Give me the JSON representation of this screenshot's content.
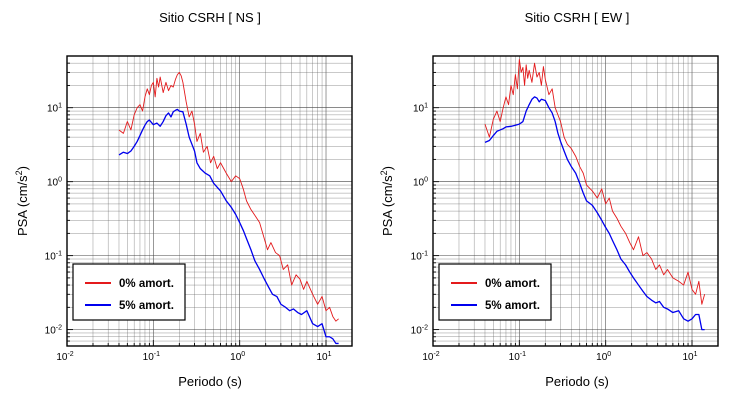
{
  "chart_data": [
    {
      "type": "line",
      "title": "Sitio CSRH [ NS ]",
      "xlabel": "Periodo (s)",
      "ylabel_main": "PSA (cm/s",
      "ylabel_sup": "2",
      "ylabel_end": ")",
      "xscale": "log",
      "yscale": "log",
      "xlim": [
        0.01,
        20
      ],
      "ylim": [
        0.006,
        50
      ],
      "grid": true,
      "legend_position": "bottom-left",
      "xticks": [
        {
          "value": 0.01,
          "base": "10",
          "exp": "-2"
        },
        {
          "value": 0.1,
          "base": "10",
          "exp": "-1"
        },
        {
          "value": 1,
          "base": "10",
          "exp": "0"
        },
        {
          "value": 10,
          "base": "10",
          "exp": "1"
        }
      ],
      "yticks": [
        {
          "value": 0.01,
          "base": "10",
          "exp": "-2"
        },
        {
          "value": 0.1,
          "base": "10",
          "exp": "-1"
        },
        {
          "value": 1,
          "base": "10",
          "exp": "0"
        },
        {
          "value": 10,
          "base": "10",
          "exp": "1"
        }
      ],
      "series": [
        {
          "name": "0% amort.",
          "color": "#e41a1c",
          "x": [
            0.04,
            0.045,
            0.05,
            0.055,
            0.06,
            0.065,
            0.07,
            0.075,
            0.08,
            0.085,
            0.09,
            0.095,
            0.1,
            0.105,
            0.11,
            0.115,
            0.12,
            0.13,
            0.14,
            0.15,
            0.16,
            0.17,
            0.18,
            0.19,
            0.2,
            0.21,
            0.22,
            0.24,
            0.26,
            0.28,
            0.3,
            0.32,
            0.35,
            0.38,
            0.42,
            0.46,
            0.5,
            0.55,
            0.6,
            0.7,
            0.8,
            0.9,
            1.0,
            1.1,
            1.2,
            1.35,
            1.5,
            1.7,
            1.9,
            2.1,
            2.3,
            2.6,
            2.9,
            3.2,
            3.6,
            4.0,
            4.5,
            5.0,
            5.5,
            6.0,
            7.0,
            8.0,
            9.0,
            10.0,
            11.0,
            12.0,
            13.0,
            14.0
          ],
          "values": [
            5.0,
            4.5,
            6.5,
            5.0,
            8.0,
            10.0,
            11.0,
            9.0,
            14.0,
            18.0,
            15.0,
            20.0,
            22.0,
            14.0,
            25.0,
            19.0,
            26.0,
            16.0,
            22.0,
            17.0,
            20.0,
            19.0,
            24.0,
            28.0,
            30.0,
            27.0,
            22.0,
            12.0,
            7.5,
            9.0,
            6.0,
            3.5,
            4.5,
            2.5,
            3.0,
            1.8,
            2.2,
            1.5,
            1.8,
            1.3,
            1.0,
            1.2,
            1.1,
            0.8,
            0.55,
            0.42,
            0.35,
            0.28,
            0.18,
            0.12,
            0.15,
            0.11,
            0.1,
            0.065,
            0.075,
            0.04,
            0.055,
            0.048,
            0.035,
            0.045,
            0.03,
            0.022,
            0.028,
            0.018,
            0.02,
            0.015,
            0.013,
            0.014
          ]
        },
        {
          "name": "5% amort.",
          "color": "#0000ee",
          "x": [
            0.04,
            0.045,
            0.05,
            0.055,
            0.06,
            0.065,
            0.07,
            0.075,
            0.08,
            0.085,
            0.09,
            0.1,
            0.11,
            0.12,
            0.13,
            0.14,
            0.15,
            0.16,
            0.17,
            0.18,
            0.19,
            0.2,
            0.22,
            0.24,
            0.26,
            0.28,
            0.3,
            0.32,
            0.35,
            0.4,
            0.45,
            0.5,
            0.6,
            0.7,
            0.8,
            0.9,
            1.0,
            1.1,
            1.2,
            1.35,
            1.5,
            1.7,
            1.9,
            2.1,
            2.4,
            2.7,
            3.0,
            3.4,
            3.8,
            4.2,
            4.7,
            5.2,
            6.0,
            7.0,
            8.0,
            9.0,
            10.0,
            11.0,
            12.0,
            13.0,
            14.0
          ],
          "values": [
            2.3,
            2.5,
            2.4,
            2.6,
            3.0,
            3.5,
            4.2,
            5.0,
            5.8,
            6.5,
            6.8,
            5.9,
            6.2,
            5.6,
            6.5,
            7.8,
            8.5,
            7.5,
            8.8,
            9.2,
            9.5,
            9.0,
            8.8,
            6.0,
            4.0,
            3.2,
            2.6,
            1.8,
            1.5,
            1.3,
            1.2,
            0.95,
            0.75,
            0.55,
            0.45,
            0.36,
            0.28,
            0.22,
            0.17,
            0.12,
            0.085,
            0.065,
            0.05,
            0.04,
            0.03,
            0.028,
            0.022,
            0.02,
            0.018,
            0.019,
            0.017,
            0.016,
            0.018,
            0.012,
            0.011,
            0.012,
            0.008,
            0.008,
            0.0075,
            0.0065,
            0.0065
          ]
        }
      ]
    },
    {
      "type": "line",
      "title": "Sitio CSRH [ EW ]",
      "xlabel": "Periodo (s)",
      "ylabel_main": "PSA (cm/s",
      "ylabel_sup": "2",
      "ylabel_end": ")",
      "xscale": "log",
      "yscale": "log",
      "xlim": [
        0.01,
        20
      ],
      "ylim": [
        0.006,
        50
      ],
      "grid": true,
      "legend_position": "bottom-left",
      "xticks": [
        {
          "value": 0.01,
          "base": "10",
          "exp": "-2"
        },
        {
          "value": 0.1,
          "base": "10",
          "exp": "-1"
        },
        {
          "value": 1,
          "base": "10",
          "exp": "0"
        },
        {
          "value": 10,
          "base": "10",
          "exp": "1"
        }
      ],
      "yticks": [
        {
          "value": 0.01,
          "base": "10",
          "exp": "-2"
        },
        {
          "value": 0.1,
          "base": "10",
          "exp": "-1"
        },
        {
          "value": 1,
          "base": "10",
          "exp": "0"
        },
        {
          "value": 10,
          "base": "10",
          "exp": "1"
        }
      ],
      "series": [
        {
          "name": "0% amort.",
          "color": "#e41a1c",
          "x": [
            0.04,
            0.045,
            0.05,
            0.055,
            0.06,
            0.065,
            0.07,
            0.075,
            0.08,
            0.085,
            0.09,
            0.095,
            0.1,
            0.105,
            0.11,
            0.115,
            0.12,
            0.125,
            0.13,
            0.14,
            0.15,
            0.16,
            0.17,
            0.18,
            0.19,
            0.2,
            0.22,
            0.24,
            0.26,
            0.28,
            0.3,
            0.33,
            0.36,
            0.4,
            0.45,
            0.5,
            0.55,
            0.6,
            0.7,
            0.8,
            0.9,
            1.0,
            1.1,
            1.2,
            1.35,
            1.5,
            1.7,
            1.9,
            2.1,
            2.4,
            2.7,
            3.0,
            3.4,
            3.8,
            4.2,
            4.7,
            5.2,
            6.0,
            7.0,
            8.0,
            9.0,
            10.0,
            11.0,
            12.0,
            13.0,
            14.0
          ],
          "values": [
            6.0,
            4.0,
            7.0,
            9.0,
            6.5,
            10.0,
            14.0,
            11.0,
            20.0,
            15.0,
            28.0,
            18.0,
            45.0,
            30.0,
            35.0,
            20.0,
            38.0,
            25.0,
            32.0,
            22.0,
            40.0,
            26.0,
            30.0,
            20.0,
            36.0,
            24.0,
            15.0,
            18.0,
            10.0,
            8.0,
            6.5,
            4.0,
            3.2,
            2.8,
            2.2,
            1.6,
            1.3,
            0.9,
            0.75,
            0.6,
            0.8,
            0.5,
            0.6,
            0.4,
            0.32,
            0.25,
            0.2,
            0.15,
            0.12,
            0.18,
            0.1,
            0.11,
            0.09,
            0.065,
            0.075,
            0.055,
            0.065,
            0.05,
            0.045,
            0.04,
            0.06,
            0.035,
            0.03,
            0.045,
            0.022,
            0.03
          ]
        },
        {
          "name": "5% amort.",
          "color": "#0000ee",
          "x": [
            0.04,
            0.045,
            0.05,
            0.055,
            0.06,
            0.065,
            0.07,
            0.08,
            0.09,
            0.1,
            0.11,
            0.12,
            0.13,
            0.14,
            0.15,
            0.16,
            0.17,
            0.18,
            0.2,
            0.22,
            0.24,
            0.26,
            0.28,
            0.3,
            0.33,
            0.36,
            0.4,
            0.45,
            0.5,
            0.55,
            0.6,
            0.7,
            0.8,
            0.9,
            1.0,
            1.1,
            1.2,
            1.35,
            1.5,
            1.7,
            1.9,
            2.1,
            2.4,
            2.7,
            3.0,
            3.4,
            3.8,
            4.2,
            4.7,
            5.2,
            6.0,
            7.0,
            8.0,
            9.0,
            10.0,
            11.0,
            12.0,
            13.0,
            14.0
          ],
          "values": [
            3.4,
            3.6,
            4.2,
            4.8,
            5.0,
            5.2,
            5.5,
            5.6,
            5.8,
            6.0,
            6.5,
            9.0,
            11.0,
            13.0,
            14.0,
            13.5,
            12.0,
            13.0,
            12.5,
            10.0,
            8.5,
            6.5,
            4.5,
            3.5,
            2.6,
            2.0,
            1.6,
            1.3,
            0.95,
            0.7,
            0.55,
            0.48,
            0.38,
            0.3,
            0.24,
            0.2,
            0.16,
            0.12,
            0.09,
            0.075,
            0.06,
            0.05,
            0.04,
            0.033,
            0.028,
            0.025,
            0.023,
            0.024,
            0.02,
            0.019,
            0.017,
            0.018,
            0.014,
            0.013,
            0.014,
            0.016,
            0.016,
            0.01,
            0.01
          ]
        }
      ]
    }
  ]
}
